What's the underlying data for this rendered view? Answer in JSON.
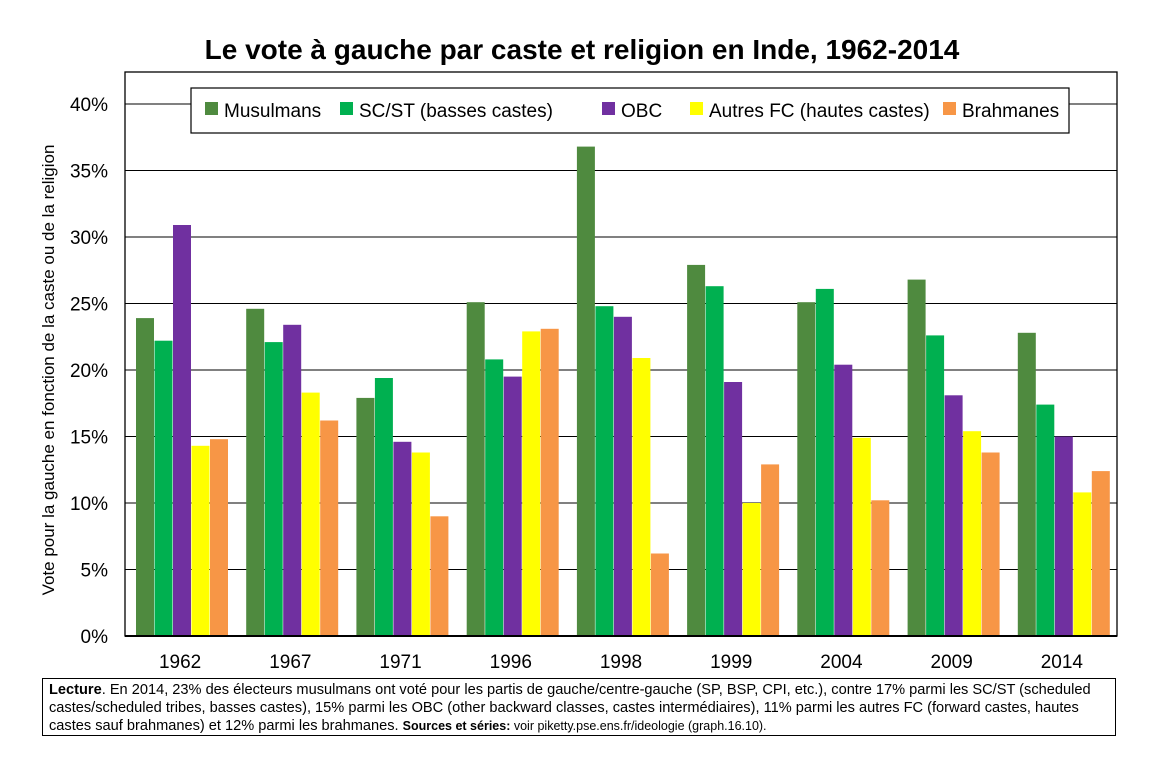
{
  "chart_data": {
    "type": "bar",
    "title": "Le vote à gauche par caste et religion en Inde, 1962-2014",
    "ylabel": "Vote pour la gauche en fonction de la caste ou de la religion",
    "xlabel": "",
    "ylim": [
      0,
      0.4
    ],
    "yticks": [
      "0%",
      "5%",
      "10%",
      "15%",
      "20%",
      "25%",
      "30%",
      "35%",
      "40%"
    ],
    "grid": true,
    "legend_position": "top",
    "categories": [
      "1962",
      "1967",
      "1971",
      "1996",
      "1998",
      "1999",
      "2004",
      "2009",
      "2014"
    ],
    "series": [
      {
        "name": "Musulmans",
        "color": "#4f8a3f",
        "values": [
          0.239,
          0.246,
          0.179,
          0.251,
          0.368,
          0.279,
          0.251,
          0.268,
          0.228
        ]
      },
      {
        "name": "SC/ST (basses castes)",
        "color": "#00b050",
        "values": [
          0.222,
          0.221,
          0.194,
          0.208,
          0.248,
          0.263,
          0.261,
          0.226,
          0.174
        ]
      },
      {
        "name": "OBC",
        "color": "#7030a0",
        "values": [
          0.309,
          0.234,
          0.146,
          0.195,
          0.24,
          0.191,
          0.204,
          0.181,
          0.15
        ]
      },
      {
        "name": "Autres FC (hautes castes)",
        "color": "#ffff00",
        "values": [
          0.143,
          0.183,
          0.138,
          0.229,
          0.209,
          0.1,
          0.149,
          0.154,
          0.108
        ]
      },
      {
        "name": "Brahmanes",
        "color": "#f79646",
        "values": [
          0.148,
          0.162,
          0.09,
          0.231,
          0.062,
          0.129,
          0.102,
          0.138,
          0.124
        ]
      }
    ]
  },
  "note": {
    "lead_label": "Lecture",
    "text": ". En 2014, 23% des électeurs musulmans ont voté pour les partis de gauche/centre-gauche (SP, BSP, CPI, etc.), contre 17% parmi les SC/ST (scheduled castes/scheduled tribes, basses castes), 15% parmi les OBC (other backward classes, castes intermédiaires), 11% parmi les autres FC (forward castes, hautes castes sauf brahmanes) et 12% parmi les brahmanes. ",
    "sources_label": "Sources et séries:",
    "sources_text": " voir piketty.pse.ens.fr/ideologie (graph.16.10)."
  }
}
